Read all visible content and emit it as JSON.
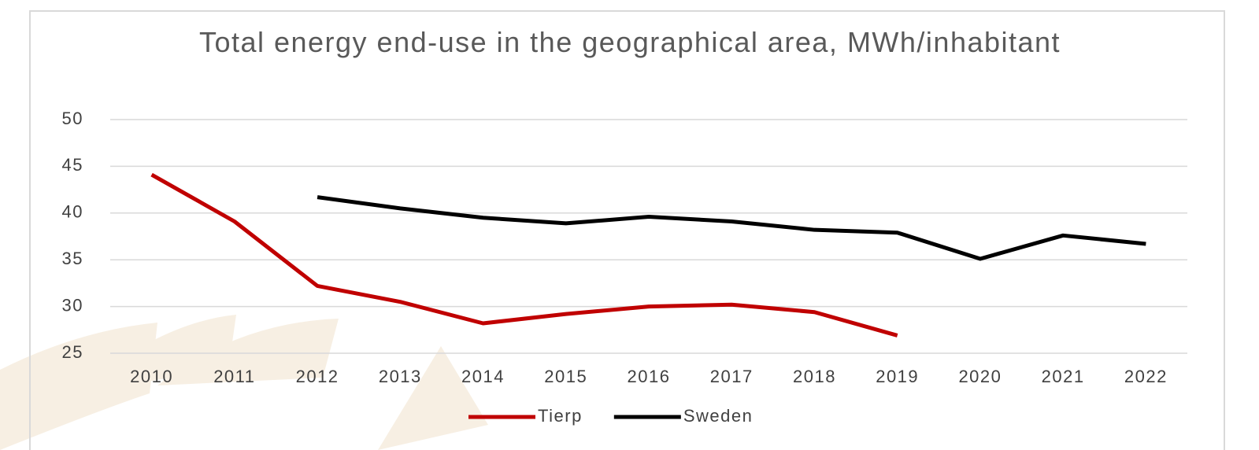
{
  "chart_data": {
    "type": "line",
    "title": "Total energy end-use in the geographical area, MWh/inhabitant",
    "categories": [
      "2010",
      "2011",
      "2012",
      "2013",
      "2014",
      "2015",
      "2016",
      "2017",
      "2018",
      "2019",
      "2020",
      "2021",
      "2022"
    ],
    "series": [
      {
        "name": "Tierp",
        "color": "#c00000",
        "values": [
          44.1,
          39.1,
          32.2,
          30.5,
          28.2,
          29.2,
          30.0,
          30.2,
          29.4,
          26.9,
          null,
          null,
          null
        ]
      },
      {
        "name": "Sweden",
        "color": "#000000",
        "values": [
          null,
          null,
          41.7,
          40.5,
          39.5,
          38.9,
          39.6,
          39.1,
          38.2,
          37.9,
          35.1,
          37.6,
          36.7
        ]
      }
    ],
    "ylim": [
      25,
      50
    ],
    "yticks": [
      25,
      30,
      35,
      40,
      45,
      50
    ],
    "grid": true,
    "legend": "bottom"
  }
}
